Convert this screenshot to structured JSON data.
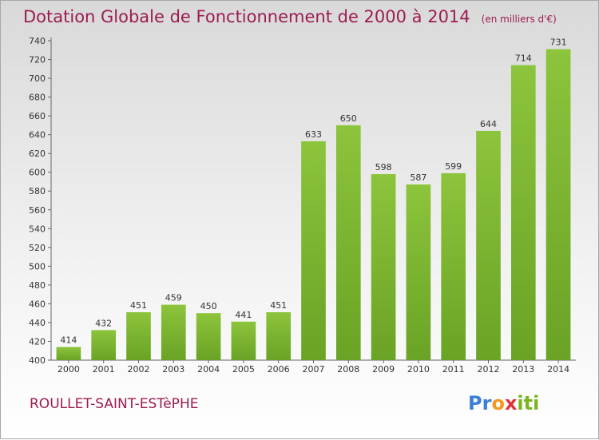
{
  "title": "Dotation Globale de Fonctionnement de 2000 à 2014",
  "unit": "(en milliers d'€)",
  "commune": "ROULLET-SAINT-ESTèPHE",
  "logo": {
    "letters": [
      "P",
      "r",
      "o",
      "x",
      "i",
      "t",
      "i"
    ],
    "colors": [
      "#3a7fd5",
      "#3a7fd5",
      "#f39a1e",
      "#e0303a",
      "#7ab51d",
      "#7ab51d",
      "#7ab51d"
    ]
  },
  "colors": {
    "bar": "#8cc43c",
    "bar_dark": "#6aa325",
    "title": "#9c1c52"
  },
  "chart_data": {
    "type": "bar",
    "categories": [
      "2000",
      "2001",
      "2002",
      "2003",
      "2004",
      "2005",
      "2006",
      "2007",
      "2008",
      "2009",
      "2010",
      "2011",
      "2012",
      "2013",
      "2014"
    ],
    "values": [
      414,
      432,
      451,
      459,
      450,
      441,
      451,
      633,
      650,
      598,
      587,
      599,
      644,
      714,
      731
    ],
    "ylim": [
      400,
      740
    ],
    "yticks": [
      400,
      420,
      440,
      460,
      480,
      500,
      520,
      540,
      560,
      580,
      600,
      620,
      640,
      660,
      680,
      700,
      720,
      740
    ],
    "grid": false
  }
}
